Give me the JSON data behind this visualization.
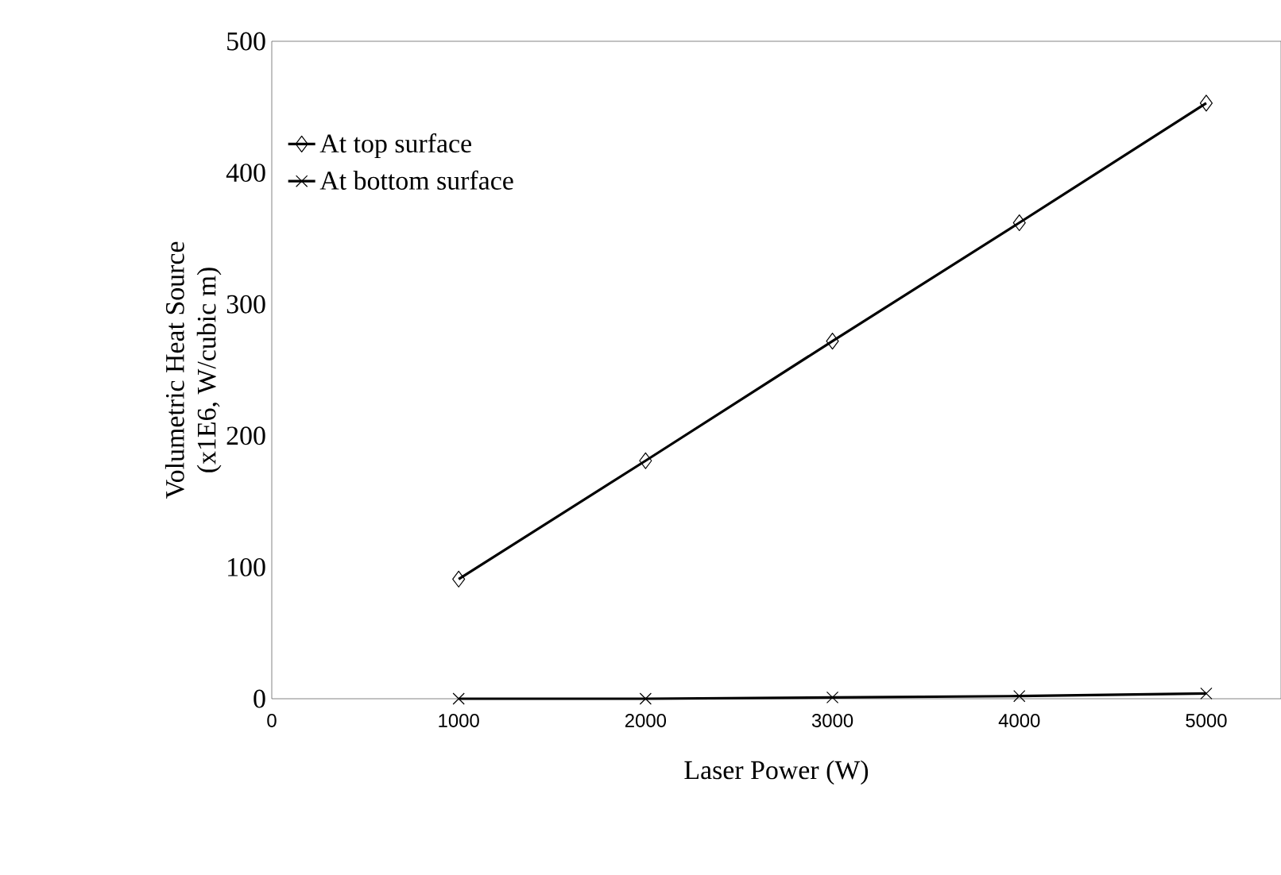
{
  "chart_data": {
    "type": "line",
    "xlabel": "Laser Power (W)",
    "ylabel": "Volumetric Heat Source\n(x1E6, W/cubic m)",
    "x": [
      1000,
      2000,
      3000,
      4000,
      5000
    ],
    "series": [
      {
        "name": "At top surface",
        "color": "#000000",
        "marker": "diamond",
        "values": [
          91,
          181,
          272,
          362,
          453
        ]
      },
      {
        "name": "At bottom surface",
        "color": "#000000",
        "marker": "cross",
        "values": [
          0,
          0,
          1,
          2,
          4
        ]
      }
    ],
    "xlim": [
      0,
      5400
    ],
    "xticks": [
      0,
      1000,
      2000,
      3000,
      4000,
      5000
    ],
    "ylim": [
      0,
      500
    ],
    "yticks": [
      0,
      100,
      200,
      300,
      400,
      500
    ],
    "grid": false,
    "legend": "top left",
    "line_style": "solid"
  }
}
